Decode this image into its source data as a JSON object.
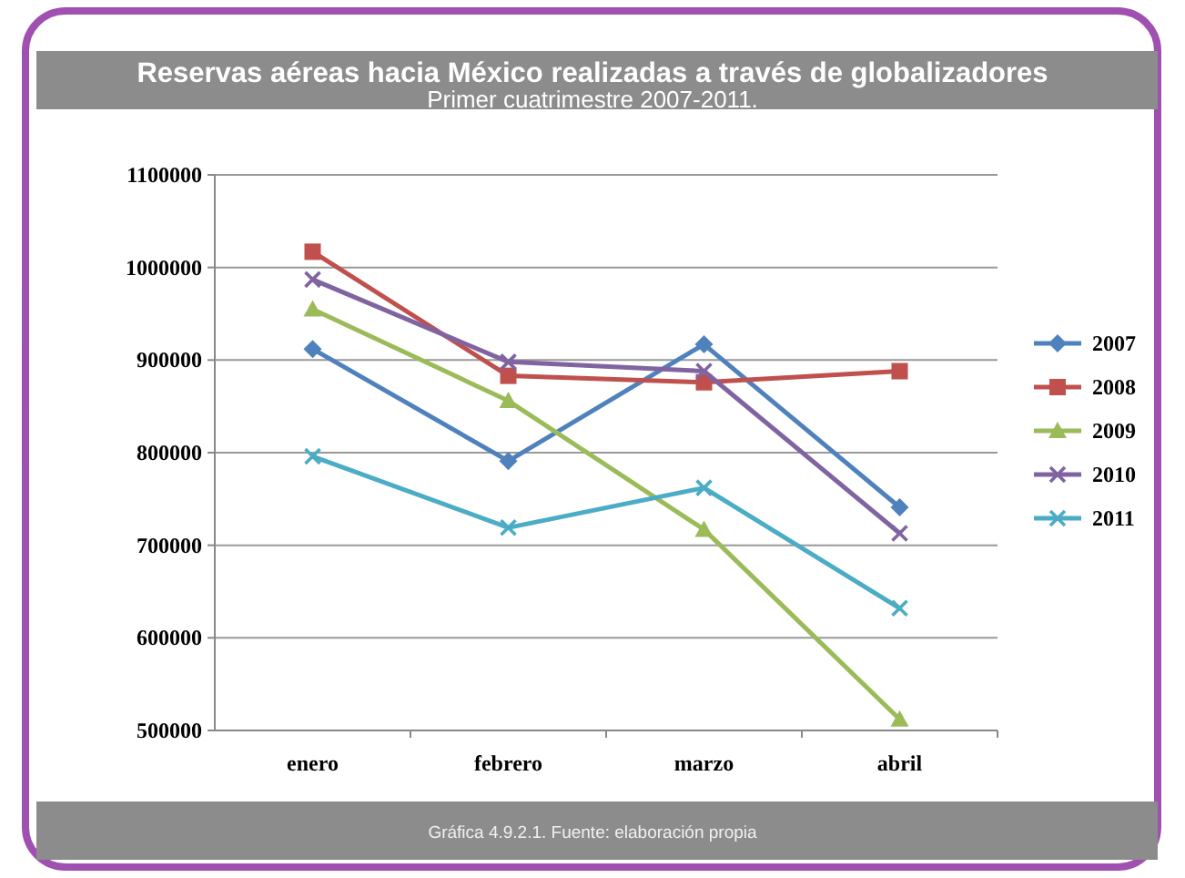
{
  "chart_data": {
    "type": "line",
    "title": "Reservas aéreas hacia México realizadas a través de globalizadores",
    "subtitle": "Primer cuatrimestre 2007-2011.",
    "categories": [
      "enero",
      "febrero",
      "marzo",
      "abril"
    ],
    "series": [
      {
        "name": "2007",
        "color": "#4f81bd",
        "values": [
          912000,
          791000,
          917000,
          741000
        ],
        "marker": "diamond"
      },
      {
        "name": "2008",
        "color": "#c0504d",
        "values": [
          1017000,
          883000,
          876000,
          888000
        ],
        "marker": "square"
      },
      {
        "name": "2009",
        "color": "#9bbb59",
        "values": [
          955000,
          856000,
          717000,
          512000
        ],
        "marker": "triangle"
      },
      {
        "name": "2010",
        "color": "#8064a2",
        "values": [
          987000,
          898000,
          888000,
          713000
        ],
        "marker": "cross"
      },
      {
        "name": "2011",
        "color": "#4bacc6",
        "values": [
          796000,
          719000,
          762000,
          632000
        ],
        "marker": "cross"
      }
    ],
    "ylim": [
      500000,
      1100000
    ],
    "yticks": [
      500000,
      600000,
      700000,
      800000,
      900000,
      1000000,
      1100000
    ],
    "grid": "y",
    "legend": "right",
    "annotations": [
      "Gráfica 4.9.2.1. Fuente: elaboración propia"
    ]
  }
}
